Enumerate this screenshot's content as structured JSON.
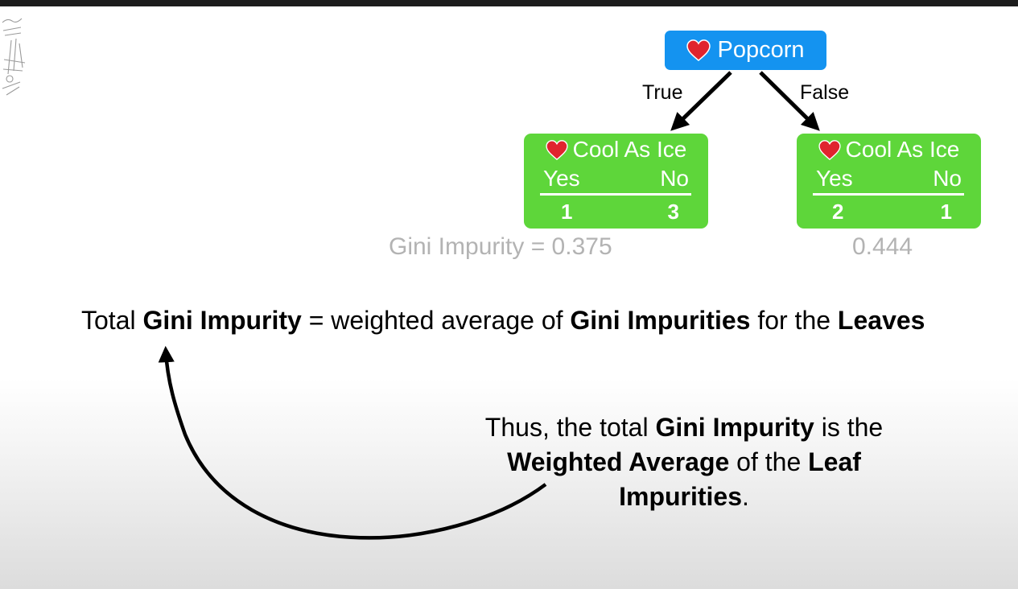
{
  "colors": {
    "root_node": "#1493f0",
    "leaf_node": "#5ed63a",
    "heart": "#e0242e",
    "muted_text": "#b3b3b3"
  },
  "icons": {
    "root": "heart-icon",
    "leaf": "heart-icon"
  },
  "tree": {
    "root": {
      "label": "Popcorn"
    },
    "edges": {
      "true_label": "True",
      "false_label": "False"
    },
    "leaves": [
      {
        "title": "Cool As Ice",
        "yes_label": "Yes",
        "no_label": "No",
        "yes_count": "1",
        "no_count": "3",
        "gini_text": "Gini Impurity = 0.375"
      },
      {
        "title": "Cool As Ice",
        "yes_label": "Yes",
        "no_label": "No",
        "yes_count": "2",
        "no_count": "1",
        "gini_text": "0.444"
      }
    ]
  },
  "equation": {
    "p1": "Total ",
    "b1": "Gini Impurity",
    "p2": " = weighted average of ",
    "b2": "Gini Impurities",
    "p3": " for the ",
    "b3": "Leaves"
  },
  "note": {
    "p1": "Thus, the total ",
    "b1": "Gini Impurity",
    "p2": " is the ",
    "b2": "Weighted Average",
    "p3": " of the ",
    "b3": "Leaf Impurities",
    "p4": "."
  }
}
